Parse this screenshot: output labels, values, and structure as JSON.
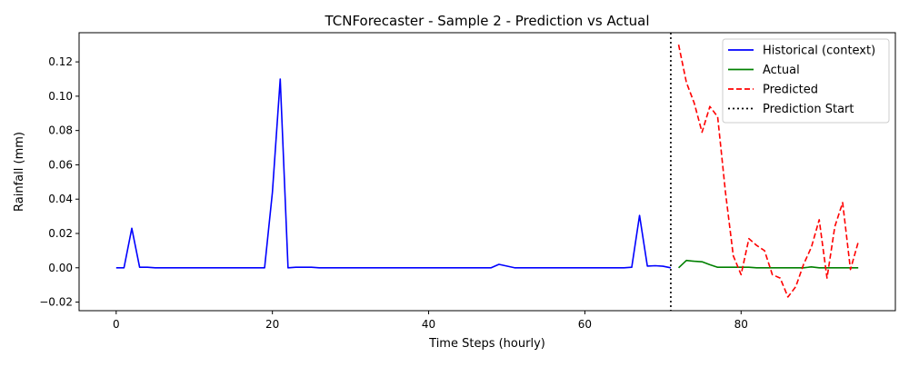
{
  "chart_data": {
    "type": "line",
    "title": "TCNForecaster - Sample 2 - Prediction vs Actual",
    "xlabel": "Time Steps (hourly)",
    "ylabel": "Rainfall (mm)",
    "xlim": [
      -4.75,
      99.75
    ],
    "ylim": [
      -0.025,
      0.137
    ],
    "xticks": [
      0,
      20,
      40,
      60,
      80
    ],
    "yticks": [
      -0.02,
      0.0,
      0.02,
      0.04,
      0.06,
      0.08,
      0.1,
      0.12
    ],
    "ytick_labels": [
      "−0.02",
      "0.00",
      "0.02",
      "0.04",
      "0.06",
      "0.08",
      "0.10",
      "0.12"
    ],
    "grid": false,
    "legend_position": "top-right",
    "series": [
      {
        "name": "Historical (context)",
        "color": "#0000ff",
        "style": "solid",
        "x": [
          0,
          1,
          2,
          3,
          4,
          5,
          6,
          7,
          8,
          9,
          10,
          11,
          12,
          13,
          14,
          15,
          16,
          17,
          18,
          19,
          20,
          21,
          22,
          23,
          24,
          25,
          26,
          27,
          28,
          29,
          30,
          31,
          32,
          33,
          34,
          35,
          36,
          37,
          38,
          39,
          40,
          41,
          42,
          43,
          44,
          45,
          46,
          47,
          48,
          49,
          50,
          51,
          52,
          53,
          54,
          55,
          56,
          57,
          58,
          59,
          60,
          61,
          62,
          63,
          64,
          65,
          66,
          67,
          68,
          69,
          70,
          71
        ],
        "y": [
          0,
          0,
          0.023,
          0.0003,
          0.0003,
          0,
          0,
          0,
          0,
          0,
          0,
          0,
          0,
          0,
          0,
          0,
          0,
          0,
          0,
          0,
          0.044,
          0.11,
          0,
          0.0003,
          0.0003,
          0.0003,
          0,
          0,
          0,
          0,
          0,
          0,
          0,
          0,
          0,
          0,
          0,
          0,
          0,
          0,
          0,
          0,
          0,
          0,
          0,
          0,
          0,
          0,
          0,
          0.002,
          0.001,
          0,
          0,
          0,
          0,
          0,
          0,
          0,
          0,
          0,
          0,
          0,
          0,
          0,
          0,
          0,
          0.0003,
          0.0305,
          0.001,
          0.0012,
          0.0009,
          0
        ]
      },
      {
        "name": "Actual",
        "color": "#008000",
        "style": "solid",
        "x": [
          72,
          73,
          74,
          75,
          76,
          77,
          78,
          79,
          80,
          81,
          82,
          83,
          84,
          85,
          86,
          87,
          88,
          89,
          90,
          91,
          92,
          93,
          94,
          95
        ],
        "y": [
          0,
          0.0043,
          0.0038,
          0.0035,
          0.0018,
          0.0003,
          0.0003,
          0.0003,
          0.0003,
          0.0003,
          0,
          0,
          0,
          0,
          0,
          0,
          0,
          0.0005,
          0,
          0,
          0,
          0,
          0,
          0
        ]
      },
      {
        "name": "Predicted",
        "color": "#ff0000",
        "style": "dashed",
        "x": [
          72,
          73,
          74,
          75,
          76,
          77,
          78,
          79,
          80,
          81,
          82,
          83,
          84,
          85,
          86,
          87,
          88,
          89,
          90,
          91,
          92,
          93,
          94,
          95
        ],
        "y": [
          0.13,
          0.108,
          0.096,
          0.079,
          0.094,
          0.088,
          0.044,
          0.007,
          -0.004,
          0.017,
          0.013,
          0.01,
          -0.004,
          -0.006,
          -0.017,
          -0.011,
          0.002,
          0.012,
          0.028,
          -0.006,
          0.024,
          0.038,
          -0.001,
          0.015
        ]
      }
    ],
    "vlines": [
      {
        "name": "Prediction Start",
        "x": 71,
        "color": "#000000",
        "style": "dotted"
      }
    ]
  }
}
